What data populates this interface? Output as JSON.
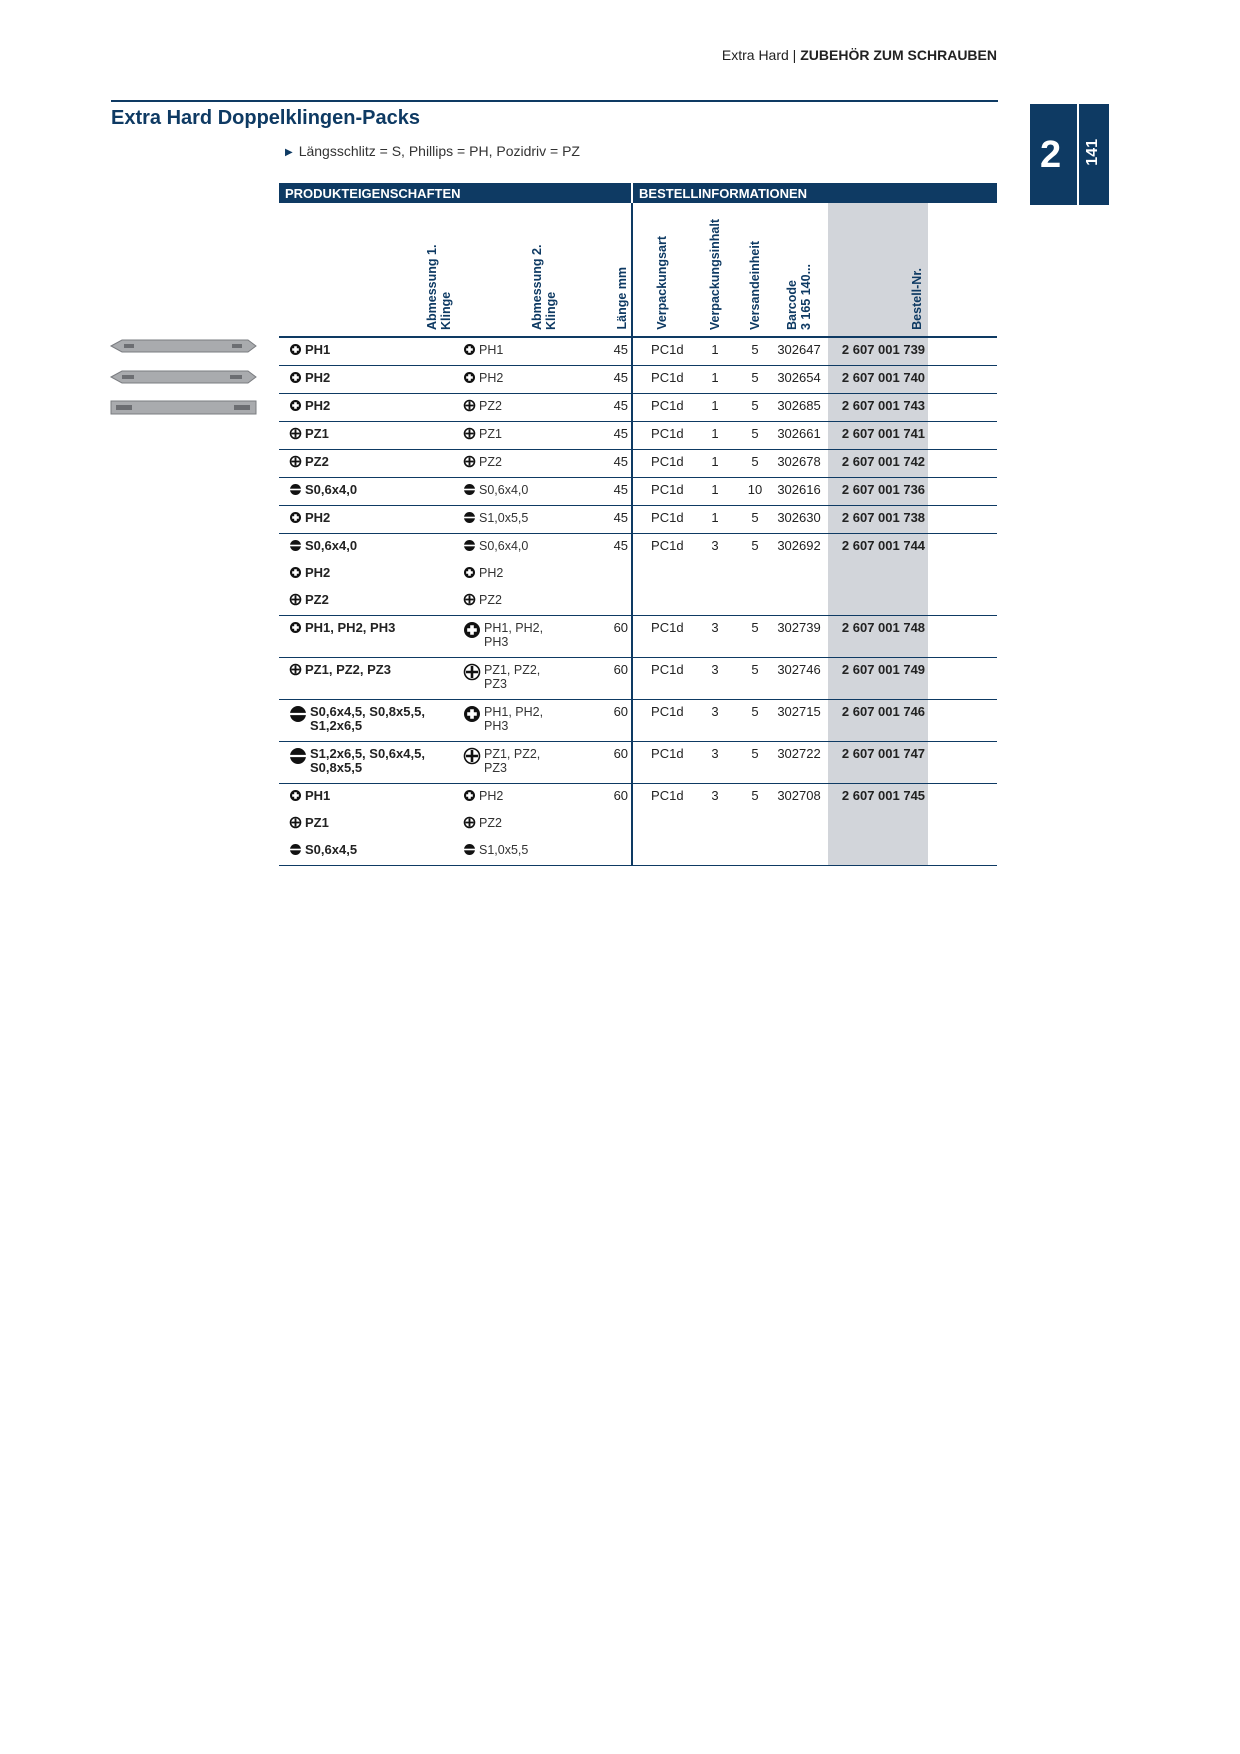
{
  "header": {
    "section": "Extra Hard",
    "chapter": "ZUBEHÖR ZUM SCHRAUBEN"
  },
  "tab": {
    "chapter_number": "2",
    "page_number": "141"
  },
  "title": "Extra Hard Doppelklingen-Packs",
  "note": "Längsschlitz = S, Phillips = PH, Pozidriv = PZ",
  "table": {
    "groups": [
      "PRODUKTEIGENSCHAFTEN",
      "BESTELLINFORMATIONEN"
    ],
    "columns": [
      [
        "Abmessung 1. Klinge"
      ],
      [
        "Abmessung 2. Klinge"
      ],
      [
        "Länge mm"
      ],
      [
        "Verpackungsart"
      ],
      [
        "Verpackungsinhalt"
      ],
      [
        "Versandeinheit"
      ],
      [
        "Barcode",
        "3 165 140..."
      ],
      [
        "Bestell-Nr."
      ]
    ],
    "rows": [
      {
        "blade1": [
          {
            "icon": "ph",
            "text": "PH1"
          }
        ],
        "blade2": [
          {
            "icon": "ph",
            "text": "PH1"
          }
        ],
        "length": "45",
        "pack_type": "PC1d",
        "pack_content": "1",
        "shipping_unit": "5",
        "barcode": "302647",
        "order_no": "2 607 001 739"
      },
      {
        "blade1": [
          {
            "icon": "ph",
            "text": "PH2"
          }
        ],
        "blade2": [
          {
            "icon": "ph",
            "text": "PH2"
          }
        ],
        "length": "45",
        "pack_type": "PC1d",
        "pack_content": "1",
        "shipping_unit": "5",
        "barcode": "302654",
        "order_no": "2 607 001 740"
      },
      {
        "blade1": [
          {
            "icon": "ph",
            "text": "PH2"
          }
        ],
        "blade2": [
          {
            "icon": "pz",
            "text": "PZ2"
          }
        ],
        "length": "45",
        "pack_type": "PC1d",
        "pack_content": "1",
        "shipping_unit": "5",
        "barcode": "302685",
        "order_no": "2 607 001 743"
      },
      {
        "blade1": [
          {
            "icon": "pz",
            "text": "PZ1"
          }
        ],
        "blade2": [
          {
            "icon": "pz",
            "text": "PZ1"
          }
        ],
        "length": "45",
        "pack_type": "PC1d",
        "pack_content": "1",
        "shipping_unit": "5",
        "barcode": "302661",
        "order_no": "2 607 001 741"
      },
      {
        "blade1": [
          {
            "icon": "pz",
            "text": "PZ2"
          }
        ],
        "blade2": [
          {
            "icon": "pz",
            "text": "PZ2"
          }
        ],
        "length": "45",
        "pack_type": "PC1d",
        "pack_content": "1",
        "shipping_unit": "5",
        "barcode": "302678",
        "order_no": "2 607 001 742"
      },
      {
        "blade1": [
          {
            "icon": "s",
            "text": "S0,6x4,0"
          }
        ],
        "blade2": [
          {
            "icon": "s",
            "text": "S0,6x4,0"
          }
        ],
        "length": "45",
        "pack_type": "PC1d",
        "pack_content": "1",
        "shipping_unit": "10",
        "barcode": "302616",
        "order_no": "2 607 001 736"
      },
      {
        "blade1": [
          {
            "icon": "ph",
            "text": "PH2"
          }
        ],
        "blade2": [
          {
            "icon": "s",
            "text": "S1,0x5,5"
          }
        ],
        "length": "45",
        "pack_type": "PC1d",
        "pack_content": "1",
        "shipping_unit": "5",
        "barcode": "302630",
        "order_no": "2 607 001 738"
      },
      {
        "blade1": [
          {
            "icon": "s",
            "text": "S0,6x4,0"
          },
          {
            "icon": "ph",
            "text": "PH2"
          },
          {
            "icon": "pz",
            "text": "PZ2"
          }
        ],
        "blade2": [
          {
            "icon": "s",
            "text": "S0,6x4,0"
          },
          {
            "icon": "ph",
            "text": "PH2"
          },
          {
            "icon": "pz",
            "text": "PZ2"
          }
        ],
        "length": "45",
        "pack_type": "PC1d",
        "pack_content": "3",
        "shipping_unit": "5",
        "barcode": "302692",
        "order_no": "2 607 001 744"
      },
      {
        "blade1": [
          {
            "icon": "ph",
            "text": "PH1, PH2, PH3"
          }
        ],
        "blade2": [
          {
            "icon": "ph-set",
            "text": "PH1, PH2, PH3"
          }
        ],
        "length": "60",
        "pack_type": "PC1d",
        "pack_content": "3",
        "shipping_unit": "5",
        "barcode": "302739",
        "order_no": "2 607 001 748"
      },
      {
        "blade1": [
          {
            "icon": "pz",
            "text": "PZ1, PZ2, PZ3"
          }
        ],
        "blade2": [
          {
            "icon": "pz-set",
            "text": "PZ1, PZ2, PZ3"
          }
        ],
        "length": "60",
        "pack_type": "PC1d",
        "pack_content": "3",
        "shipping_unit": "5",
        "barcode": "302746",
        "order_no": "2 607 001 749"
      },
      {
        "blade1": [
          {
            "icon": "s-set",
            "text": "S0,6x4,5, S0,8x5,5, S1,2x6,5"
          }
        ],
        "blade2": [
          {
            "icon": "ph-set",
            "text": "PH1, PH2, PH3"
          }
        ],
        "length": "60",
        "pack_type": "PC1d",
        "pack_content": "3",
        "shipping_unit": "5",
        "barcode": "302715",
        "order_no": "2 607 001 746"
      },
      {
        "blade1": [
          {
            "icon": "s-set",
            "text": "S1,2x6,5, S0,6x4,5, S0,8x5,5"
          }
        ],
        "blade2": [
          {
            "icon": "pz-set",
            "text": "PZ1, PZ2, PZ3"
          }
        ],
        "length": "60",
        "pack_type": "PC1d",
        "pack_content": "3",
        "shipping_unit": "5",
        "barcode": "302722",
        "order_no": "2 607 001 747"
      },
      {
        "blade1": [
          {
            "icon": "ph",
            "text": "PH1"
          },
          {
            "icon": "pz",
            "text": "PZ1"
          },
          {
            "icon": "s",
            "text": "S0,6x4,5"
          }
        ],
        "blade2": [
          {
            "icon": "ph",
            "text": "PH2"
          },
          {
            "icon": "pz",
            "text": "PZ2"
          },
          {
            "icon": "s",
            "text": "S1,0x5,5"
          }
        ],
        "length": "60",
        "pack_type": "PC1d",
        "pack_content": "3",
        "shipping_unit": "5",
        "barcode": "302708",
        "order_no": "2 607 001 745"
      }
    ]
  }
}
